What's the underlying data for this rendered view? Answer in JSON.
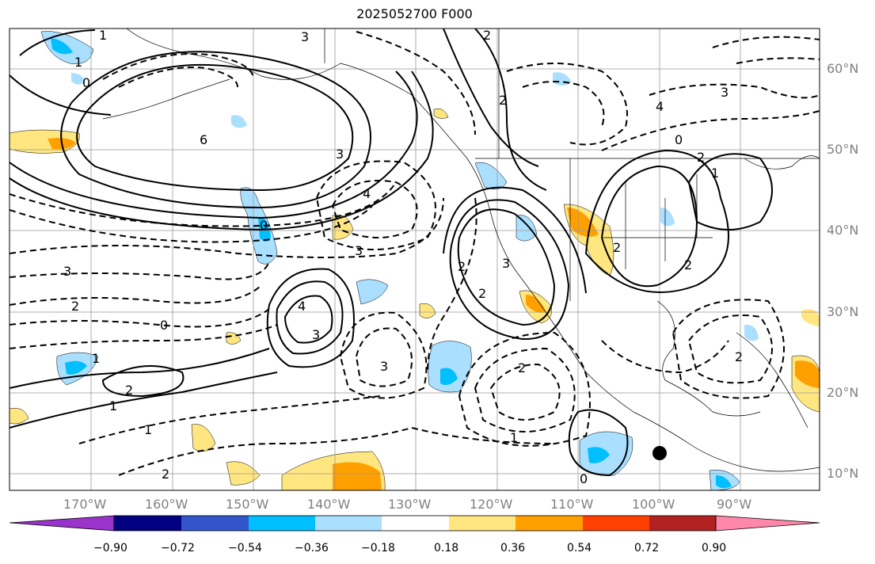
{
  "title": "2025052700 F000",
  "longitude_labels": [
    "170°W",
    "160°W",
    "150°W",
    "140°W",
    "130°W",
    "120°W",
    "110°W",
    "100°W",
    "90°W"
  ],
  "latitude_labels": [
    "60°N",
    "50°N",
    "40°N",
    "30°N",
    "20°N",
    "10°N"
  ],
  "colorbar": {
    "ticks": [
      "−0.90",
      "−0.72",
      "−0.54",
      "−0.36",
      "−0.18",
      "0.18",
      "0.36",
      "0.54",
      "0.72",
      "0.90"
    ],
    "colors": [
      "#9933cc",
      "#000080",
      "#3355cc",
      "#00bfff",
      "#aadfff",
      "#ffffff",
      "#ffe680",
      "#ffa000",
      "#ff4000",
      "#b22222",
      "#ff88aa"
    ]
  },
  "contour_labels": [
    "3",
    "2",
    "1",
    "0",
    "1",
    "6",
    "4",
    "3",
    "2",
    "0",
    "1",
    "2",
    "4",
    "3",
    "3",
    "2",
    "0",
    "3",
    "2",
    "2",
    "1",
    "0",
    "1",
    "2",
    "1",
    "2",
    "3",
    "3",
    "2",
    "2",
    "3",
    "0",
    "2",
    "1",
    "4",
    "2"
  ],
  "marker": "filled-circle"
}
